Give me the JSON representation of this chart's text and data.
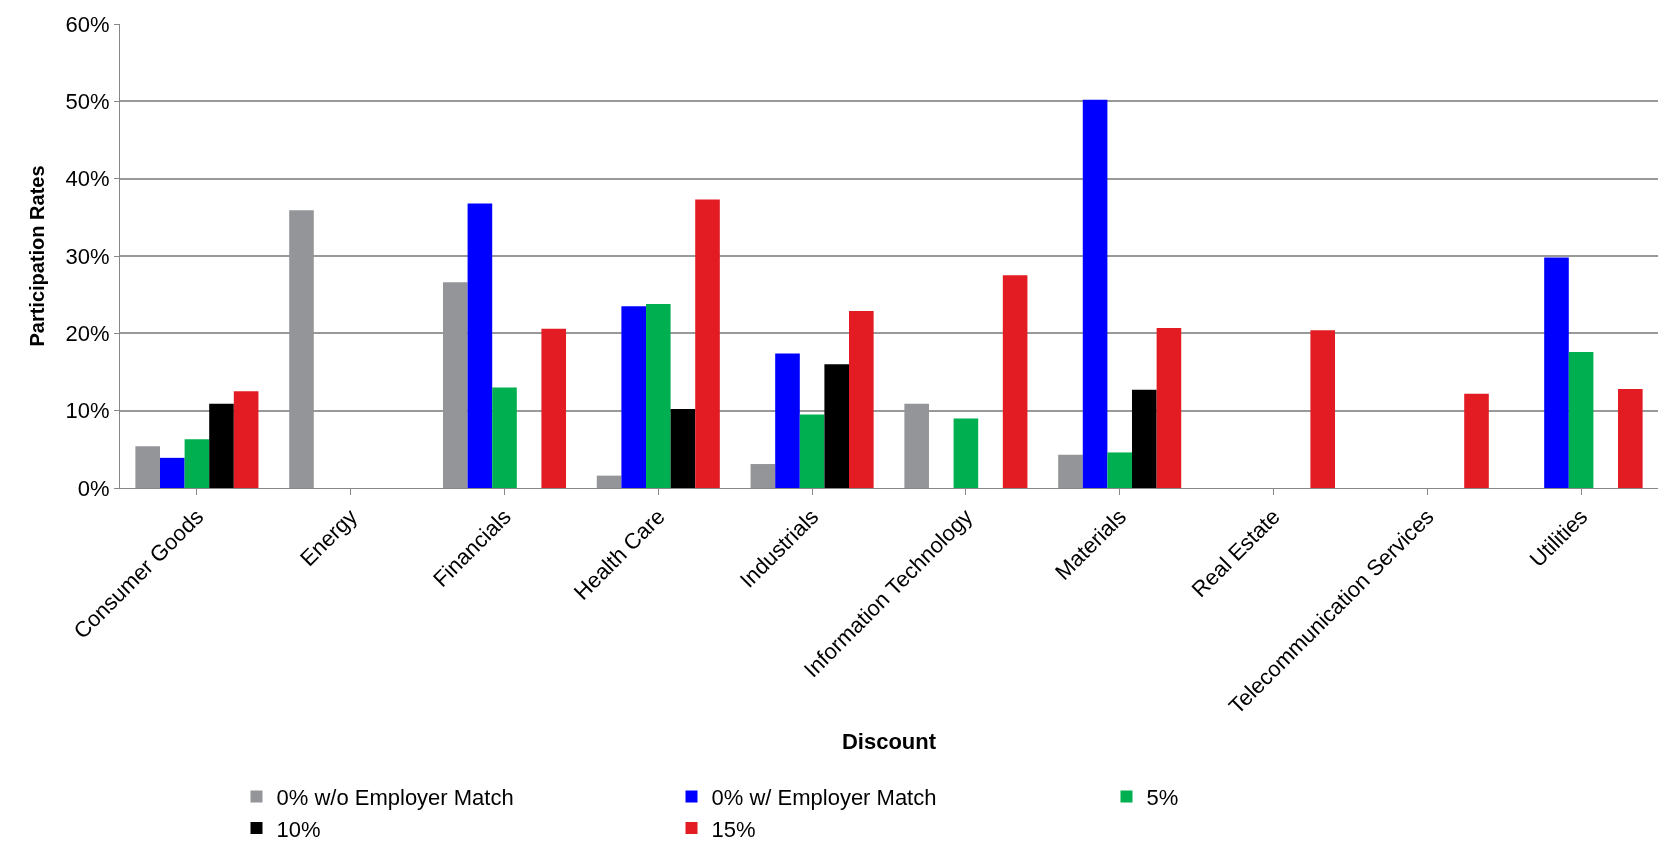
{
  "chart_data": {
    "type": "bar",
    "xlabel": "Discount",
    "ylabel": "Participation Rates",
    "categories": [
      "Consumer Goods",
      "Energy",
      "Financials",
      "Health Care",
      "Industrials",
      "Information Technology",
      "Materials",
      "Real Estate",
      "Telecommunication Services",
      "Utilities"
    ],
    "series": [
      {
        "name": "0% w/o Employer Match",
        "color": "#939598",
        "values": [
          5.4,
          35.9,
          26.6,
          1.6,
          3.1,
          10.9,
          4.3,
          null,
          null,
          null
        ]
      },
      {
        "name": "0% w/ Employer Match",
        "color": "#0000ff",
        "values": [
          3.9,
          null,
          36.8,
          23.5,
          17.4,
          null,
          50.2,
          null,
          null,
          29.8
        ]
      },
      {
        "name": "5%",
        "color": "#00b050",
        "values": [
          6.3,
          null,
          13.0,
          23.8,
          9.5,
          9.0,
          4.6,
          null,
          null,
          17.6
        ]
      },
      {
        "name": "10%",
        "color": "#000000",
        "values": [
          10.9,
          null,
          null,
          10.2,
          16.0,
          null,
          12.7,
          null,
          null,
          null
        ]
      },
      {
        "name": "15%",
        "color": "#e31c23",
        "values": [
          12.5,
          null,
          20.6,
          37.3,
          22.9,
          27.5,
          20.7,
          20.4,
          12.2,
          12.8
        ]
      }
    ],
    "ylim": [
      0,
      60
    ],
    "yticks": [
      {
        "value": 0,
        "label": "0%"
      },
      {
        "value": 10,
        "label": "10%"
      },
      {
        "value": 20,
        "label": "20%"
      },
      {
        "value": 30,
        "label": "30%"
      },
      {
        "value": 40,
        "label": "40%"
      },
      {
        "value": 50,
        "label": "50%"
      },
      {
        "value": 60,
        "label": "60%"
      }
    ],
    "grid": "y",
    "legend": "bottom"
  }
}
